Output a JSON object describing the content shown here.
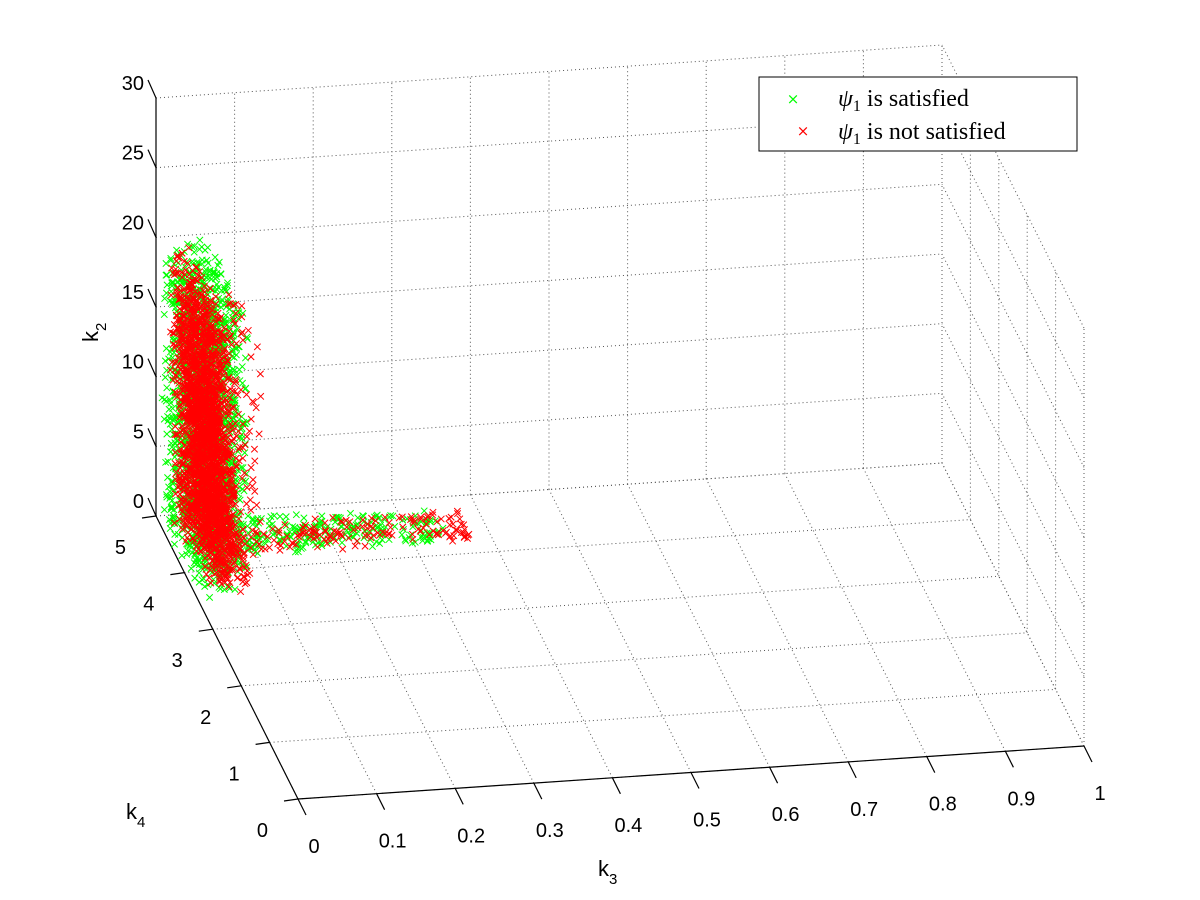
{
  "chart_data": {
    "type": "scatter",
    "projection": "3d",
    "title": "",
    "axes": {
      "x": {
        "label": "k",
        "label_sub": "3",
        "lim": [
          0,
          1
        ],
        "ticks": [
          {
            "v": 0,
            "label": "0"
          },
          {
            "v": 0.1,
            "label": "0.1"
          },
          {
            "v": 0.2,
            "label": "0.2"
          },
          {
            "v": 0.3,
            "label": "0.3"
          },
          {
            "v": 0.4,
            "label": "0.4"
          },
          {
            "v": 0.5,
            "label": "0.5"
          },
          {
            "v": 0.6,
            "label": "0.6"
          },
          {
            "v": 0.7,
            "label": "0.7"
          },
          {
            "v": 0.8,
            "label": "0.8"
          },
          {
            "v": 0.9,
            "label": "0.9"
          },
          {
            "v": 1,
            "label": "1"
          }
        ]
      },
      "y": {
        "label": "k",
        "label_sub": "4",
        "lim": [
          0,
          5
        ],
        "ticks": [
          {
            "v": 0,
            "label": "0"
          },
          {
            "v": 1,
            "label": "1"
          },
          {
            "v": 2,
            "label": "2"
          },
          {
            "v": 3,
            "label": "3"
          },
          {
            "v": 4,
            "label": "4"
          },
          {
            "v": 5,
            "label": "5"
          }
        ]
      },
      "z": {
        "label": "k",
        "label_sub": "2",
        "lim": [
          0,
          30
        ],
        "ticks": [
          {
            "v": 0,
            "label": "0"
          },
          {
            "v": 5,
            "label": "5"
          },
          {
            "v": 10,
            "label": "10"
          },
          {
            "v": 15,
            "label": "15"
          },
          {
            "v": 20,
            "label": "20"
          },
          {
            "v": 25,
            "label": "25"
          },
          {
            "v": 30,
            "label": "30"
          }
        ]
      }
    },
    "grid": true,
    "legend": {
      "placement": "top-right",
      "entries": [
        {
          "symbol": "ψ",
          "sub": "1",
          "text": " is satisfied",
          "color": "#00ff00",
          "marker": "×"
        },
        {
          "symbol": "ψ",
          "sub": "1",
          "text": " is not satisfied",
          "color": "#ff0000",
          "marker": "×"
        }
      ]
    },
    "series": [
      {
        "color": "#00ff00",
        "marker": "x",
        "distribution": "envelope around the red cloud; vertical sheet at k3≈0–0.04, k4≈3.5–5, k2≈0–20, plus branch along k3 up to ≈0.35 at k2≈1",
        "approx_points": [
          {
            "k3": 0.005,
            "k4": 4.9,
            "k2": 19.5
          },
          {
            "k3": 0.02,
            "k4": 4.8,
            "k2": 20.0
          },
          {
            "k3": 0.0,
            "k4": 4.5,
            "k2": 12.0
          },
          {
            "k3": 0.0,
            "k4": 4.0,
            "k2": 5.0
          },
          {
            "k3": 0.005,
            "k4": 3.4,
            "k2": 0.5
          },
          {
            "k3": 0.15,
            "k4": 4.3,
            "k2": 1.0
          },
          {
            "k3": 0.25,
            "k4": 4.4,
            "k2": 0.8
          },
          {
            "k3": 0.33,
            "k4": 4.5,
            "k2": 0.6
          }
        ]
      },
      {
        "color": "#ff0000",
        "marker": "x",
        "distribution": "dense vertical sheet at k3≈0.01–0.06, k4≈3.5–5, k2≈0–20, with low branch along k3 up to ≈0.37",
        "approx_points": [
          {
            "k3": 0.03,
            "k4": 4.9,
            "k2": 20.0
          },
          {
            "k3": 0.04,
            "k4": 4.6,
            "k2": 14.0
          },
          {
            "k3": 0.05,
            "k4": 4.4,
            "k2": 8.0
          },
          {
            "k3": 0.06,
            "k4": 4.2,
            "k2": 3.0
          },
          {
            "k3": 0.05,
            "k4": 3.6,
            "k2": 0.5
          },
          {
            "k3": 0.2,
            "k4": 4.3,
            "k2": 0.8
          },
          {
            "k3": 0.3,
            "k4": 4.4,
            "k2": 0.6
          },
          {
            "k3": 0.37,
            "k4": 4.5,
            "k2": 0.4
          }
        ]
      }
    ]
  }
}
